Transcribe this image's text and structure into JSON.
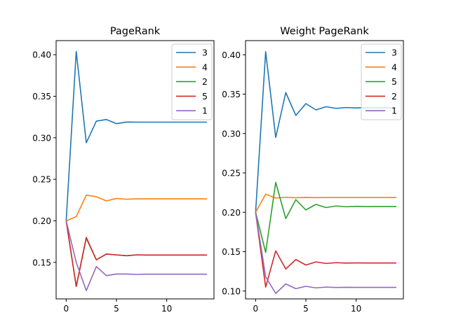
{
  "chart_data": [
    {
      "type": "line",
      "title": "PageRank",
      "xlabel": "",
      "ylabel": "",
      "xlim": [
        -1,
        14.7
      ],
      "ylim": [
        0.106,
        0.417
      ],
      "xticks": [
        0,
        5,
        10
      ],
      "yticks": [
        0.15,
        0.2,
        0.25,
        0.3,
        0.35,
        0.4
      ],
      "ytick_labels": [
        "0.15",
        "0.20",
        "0.25",
        "0.30",
        "0.35",
        "0.40"
      ],
      "grid": false,
      "legend_position": "top-right",
      "x": [
        0,
        1,
        2,
        3,
        4,
        5,
        6,
        7,
        8,
        9,
        10,
        11,
        12,
        13,
        14
      ],
      "series": [
        {
          "name": "3",
          "color": "#1f77b4",
          "values": [
            0.2,
            0.404,
            0.294,
            0.32,
            0.322,
            0.317,
            0.319,
            0.3188,
            0.3188,
            0.3188,
            0.3188,
            0.3188,
            0.3188,
            0.3188,
            0.3188
          ]
        },
        {
          "name": "4",
          "color": "#ff7f0e",
          "values": [
            0.2,
            0.205,
            0.231,
            0.229,
            0.224,
            0.227,
            0.226,
            0.2265,
            0.2265,
            0.2265,
            0.2265,
            0.2265,
            0.2265,
            0.2265,
            0.2265
          ]
        },
        {
          "name": "2",
          "color": "#2ca02c",
          "values": [
            0.2,
            0.121,
            0.179,
            0.153,
            0.16,
            0.159,
            0.158,
            0.159,
            0.1588,
            0.1588,
            0.1588,
            0.1588,
            0.1588,
            0.1588,
            0.1588
          ]
        },
        {
          "name": "5",
          "color": "#d62728",
          "values": [
            0.2,
            0.121,
            0.18,
            0.153,
            0.16,
            0.159,
            0.158,
            0.159,
            0.1588,
            0.1588,
            0.1588,
            0.1588,
            0.1588,
            0.1588,
            0.1588
          ]
        },
        {
          "name": "1",
          "color": "#9467bd",
          "values": [
            0.2,
            0.15,
            0.116,
            0.145,
            0.134,
            0.136,
            0.136,
            0.1355,
            0.1358,
            0.1358,
            0.1358,
            0.1358,
            0.1358,
            0.1358,
            0.1358
          ]
        }
      ]
    },
    {
      "type": "line",
      "title": "Weight PageRank",
      "xlabel": "",
      "ylabel": "",
      "xlim": [
        -1,
        14.7
      ],
      "ylim": [
        0.09,
        0.418
      ],
      "xticks": [
        0,
        5,
        10
      ],
      "yticks": [
        0.1,
        0.15,
        0.2,
        0.25,
        0.3,
        0.35,
        0.4
      ],
      "ytick_labels": [
        "0.10",
        "0.15",
        "0.20",
        "0.25",
        "0.30",
        "0.35",
        "0.40"
      ],
      "grid": false,
      "legend_position": "top-right",
      "x": [
        0,
        1,
        2,
        3,
        4,
        5,
        6,
        7,
        8,
        9,
        10,
        11,
        12,
        13,
        14
      ],
      "series": [
        {
          "name": "3",
          "color": "#1f77b4",
          "values": [
            0.2,
            0.404,
            0.295,
            0.352,
            0.323,
            0.338,
            0.33,
            0.334,
            0.332,
            0.333,
            0.3325,
            0.3328,
            0.3327,
            0.3327,
            0.3327
          ]
        },
        {
          "name": "4",
          "color": "#ff7f0e",
          "values": [
            0.2,
            0.223,
            0.218,
            0.219,
            0.2185,
            0.2188,
            0.2186,
            0.2187,
            0.2187,
            0.2187,
            0.2187,
            0.2187,
            0.2187,
            0.2187,
            0.2187
          ]
        },
        {
          "name": "5",
          "color": "#2ca02c",
          "values": [
            0.2,
            0.149,
            0.238,
            0.192,
            0.216,
            0.203,
            0.21,
            0.206,
            0.208,
            0.207,
            0.2075,
            0.2072,
            0.2073,
            0.2073,
            0.2073
          ]
        },
        {
          "name": "2",
          "color": "#d62728",
          "values": [
            0.2,
            0.105,
            0.151,
            0.128,
            0.14,
            0.133,
            0.137,
            0.135,
            0.136,
            0.1355,
            0.1357,
            0.1356,
            0.1356,
            0.1356,
            0.1356
          ]
        },
        {
          "name": "1",
          "color": "#9467bd",
          "values": [
            0.2,
            0.118,
            0.097,
            0.109,
            0.103,
            0.106,
            0.104,
            0.105,
            0.1045,
            0.1047,
            0.1046,
            0.1046,
            0.1046,
            0.1046,
            0.1046
          ]
        }
      ]
    }
  ]
}
